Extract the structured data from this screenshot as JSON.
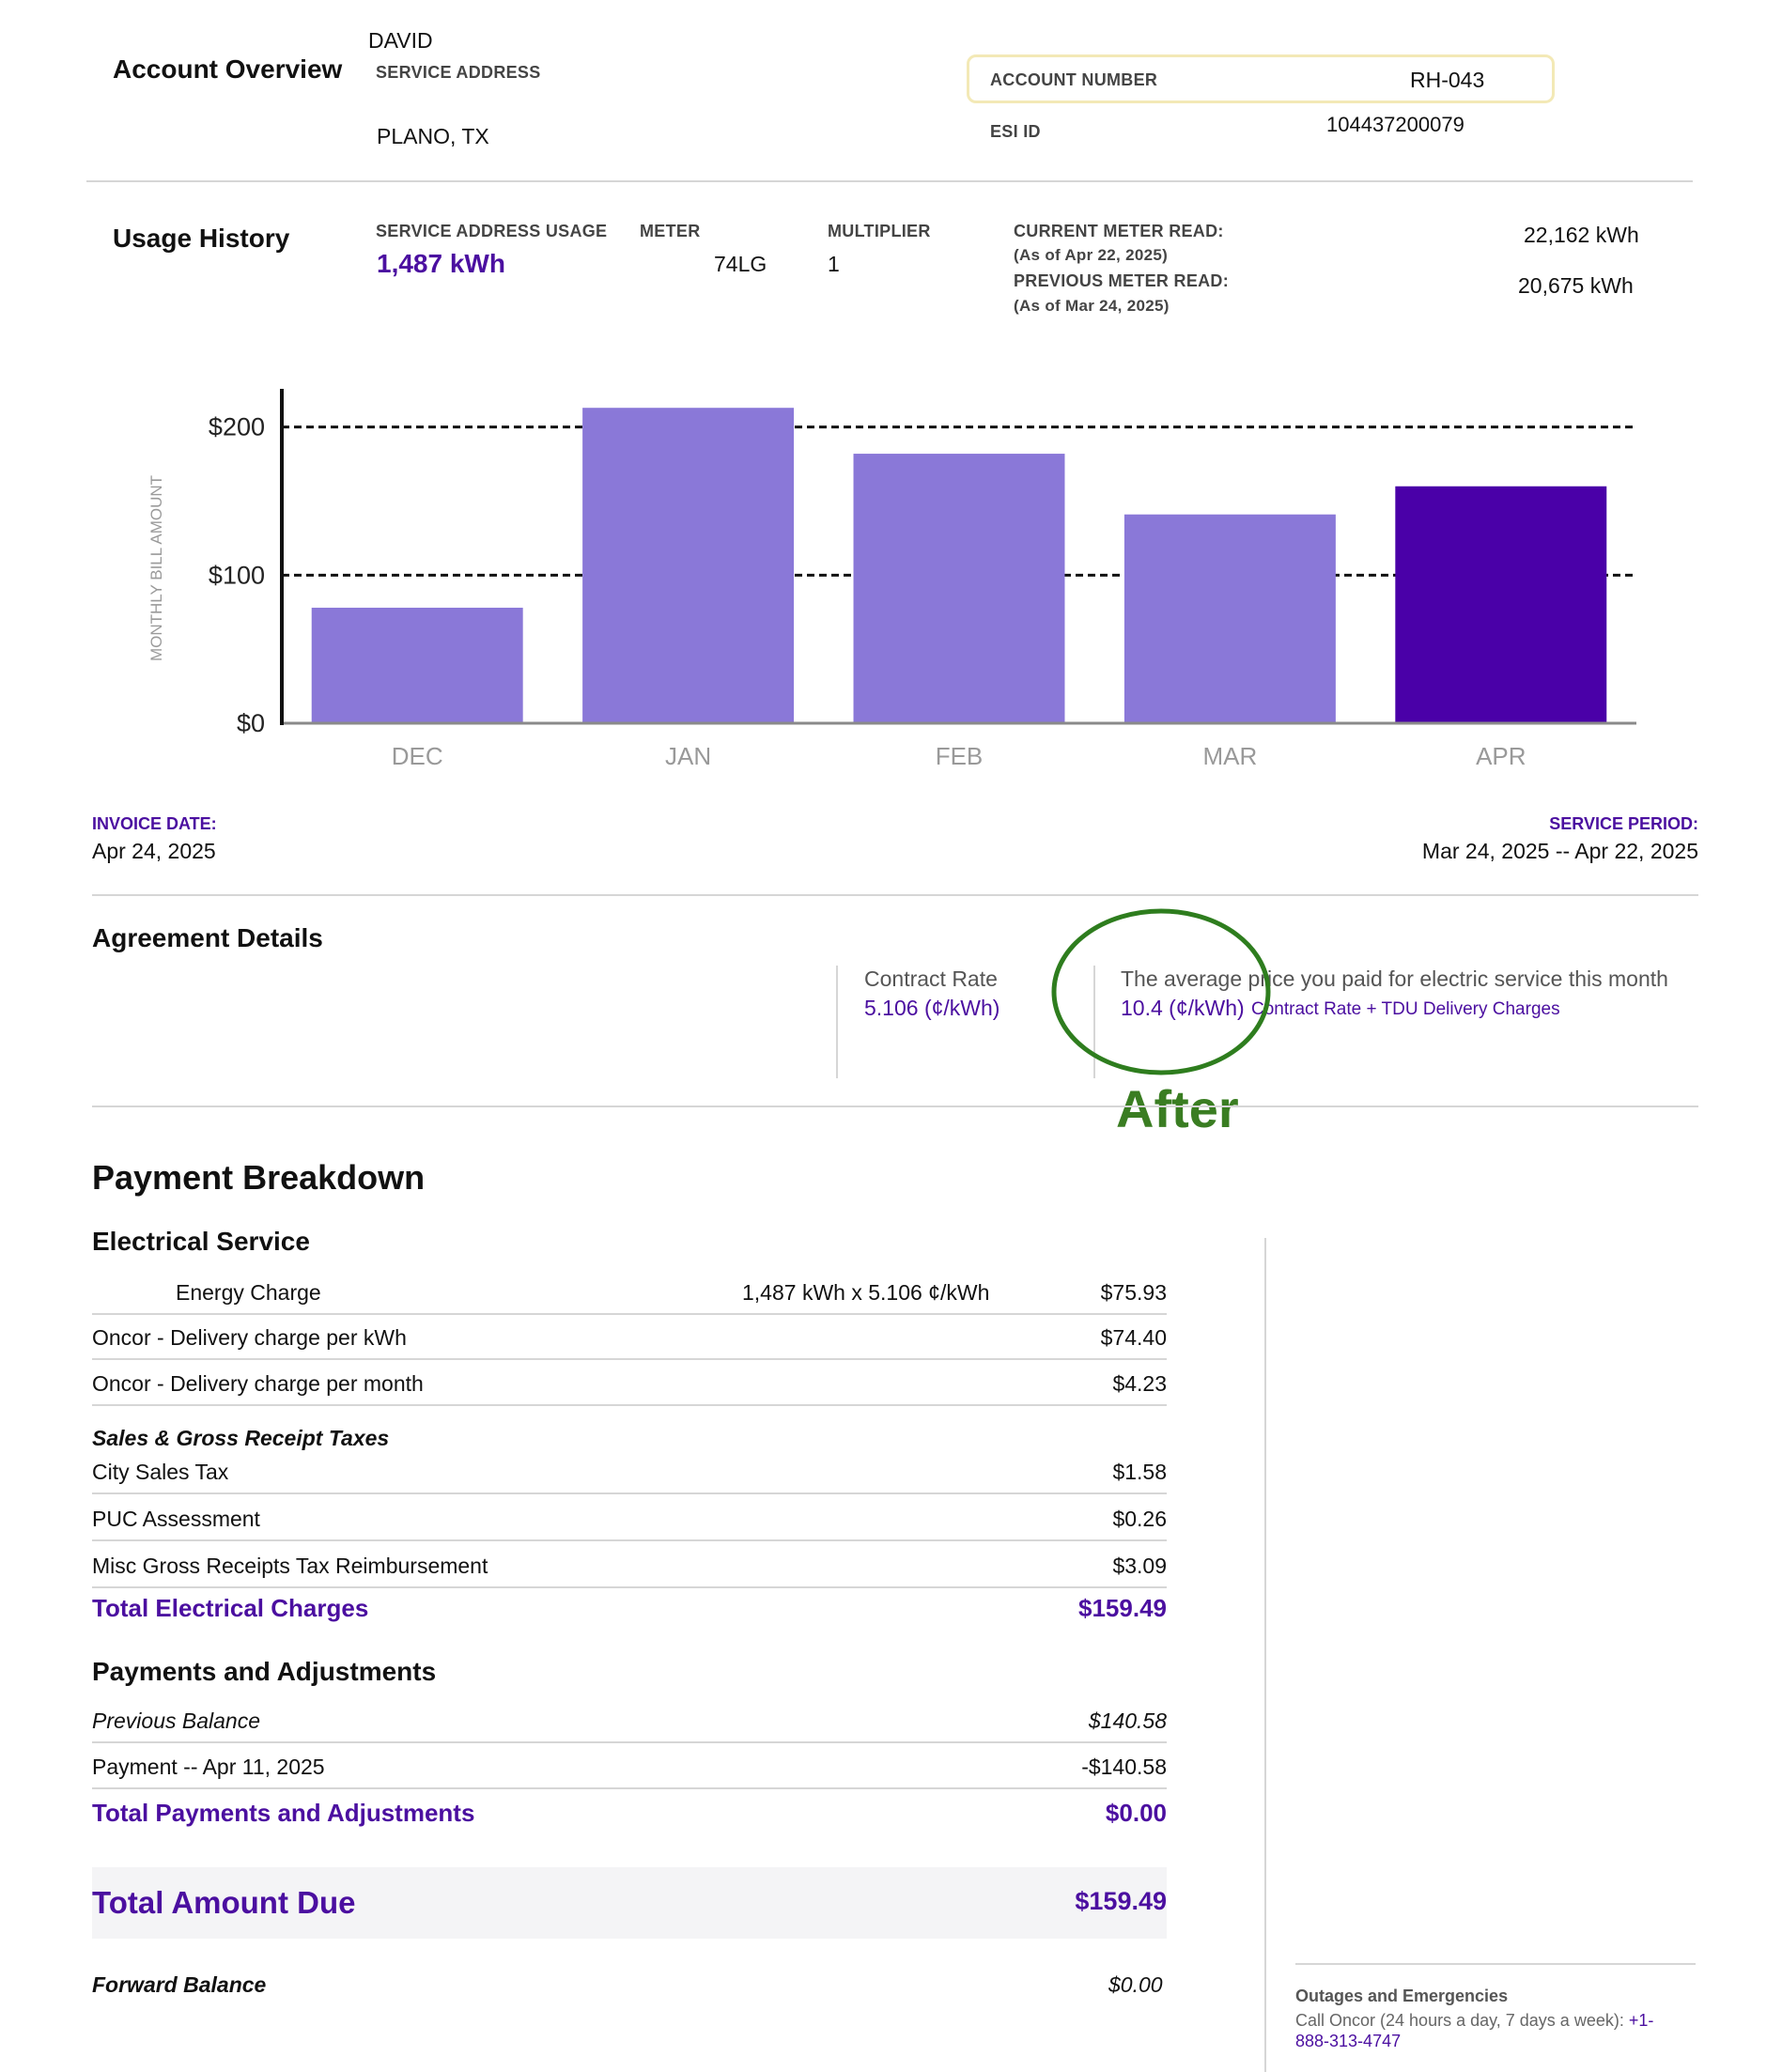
{
  "account": {
    "section_title": "Account Overview",
    "customer_name": "DAVID",
    "service_address_label": "SERVICE ADDRESS",
    "city_state": "PLANO, TX",
    "account_number_label": "ACCOUNT NUMBER",
    "account_number": "RH-043",
    "esi_id_label": "ESI ID",
    "esi_id": "104437200079"
  },
  "usage": {
    "section_title": "Usage History",
    "service_usage_label": "SERVICE ADDRESS USAGE",
    "service_usage_value": "1,487 kWh",
    "meter_label": "METER",
    "meter_value": "74LG",
    "multiplier_label": "MULTIPLIER",
    "multiplier_value": "1",
    "current_read_label": "CURRENT METER READ:",
    "current_read_date": "(As of Apr 22, 2025)",
    "current_read_value": "22,162 kWh",
    "previous_read_label": "PREVIOUS METER READ:",
    "previous_read_date": "(As of Mar 24, 2025)",
    "previous_read_value": "20,675 kWh"
  },
  "chart_data": {
    "type": "bar",
    "categories": [
      "DEC",
      "JAN",
      "FEB",
      "MAR",
      "APR"
    ],
    "values": [
      78,
      213,
      182,
      141,
      160
    ],
    "highlight_index": 4,
    "ylabel": "MONTHLY BILL AMOUNT",
    "yticks": [
      0,
      100,
      200
    ],
    "ytick_labels": [
      "$0",
      "$100",
      "$200"
    ],
    "ylim": [
      0,
      222
    ],
    "grid": "dashed at $100 and $200",
    "colors": {
      "bar": "#8a78d8",
      "highlight": "#4a00a8",
      "axis": "#111111",
      "tick_label": "#999999"
    }
  },
  "dates": {
    "invoice_date_label": "INVOICE DATE:",
    "invoice_date": "Apr 24, 2025",
    "service_period_label": "SERVICE PERIOD:",
    "service_period": "Mar 24, 2025 -- Apr 22, 2025"
  },
  "agreement": {
    "section_title": "Agreement Details",
    "contract_rate_label": "Contract Rate",
    "contract_rate_value": "5.106 (¢/kWh)",
    "avg_price_label": "The average price you paid for electric service this month",
    "avg_price_value": "10.4 (¢/kWh)",
    "avg_price_note": "Contract Rate + TDU Delivery Charges",
    "annotation": "After"
  },
  "payment": {
    "section_title": "Payment Breakdown",
    "electrical_title": "Electrical Service",
    "electrical_rows": [
      {
        "label": "Energy Charge",
        "detail": "1,487 kWh x 5.106 ¢/kWh",
        "amount": "$75.93"
      },
      {
        "label": "Oncor - Delivery charge per kWh",
        "detail": "",
        "amount": "$74.40"
      },
      {
        "label": "Oncor - Delivery charge per month",
        "detail": "",
        "amount": "$4.23"
      }
    ],
    "taxes_title": "Sales & Gross Receipt Taxes",
    "tax_rows": [
      {
        "label": "City Sales Tax",
        "amount": "$1.58"
      },
      {
        "label": "PUC Assessment",
        "amount": "$0.26"
      },
      {
        "label": "Misc Gross Receipts Tax Reimbursement",
        "amount": "$3.09"
      }
    ],
    "total_electrical_label": "Total Electrical Charges",
    "total_electrical_amount": "$159.49",
    "adjustments_title": "Payments and Adjustments",
    "adjustment_rows": [
      {
        "label": "Previous Balance",
        "amount": "$140.58"
      },
      {
        "label": "Payment -- Apr 11, 2025",
        "amount": "-$140.58"
      }
    ],
    "total_adjustments_label": "Total Payments and Adjustments",
    "total_adjustments_amount": "$0.00",
    "total_due_label": "Total Amount Due",
    "total_due_amount": "$159.49",
    "forward_balance_label": "Forward Balance",
    "forward_balance_amount": "$0.00"
  },
  "outages": {
    "title": "Outages and Emergencies",
    "text": "Call Oncor (24 hours a day, 7 days a week):",
    "phone_line1": "+1-",
    "phone_line2": "888-313-4747"
  }
}
